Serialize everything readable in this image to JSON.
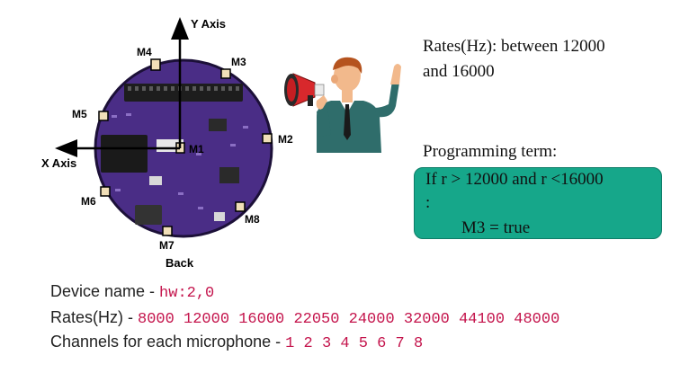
{
  "diagram": {
    "axes": {
      "y_label": "Y Axis",
      "x_label": "X Axis"
    },
    "mics": [
      "M1",
      "M2",
      "M3",
      "M4",
      "M5",
      "M6",
      "M7",
      "M8"
    ],
    "back_label": "Back"
  },
  "rates_note": {
    "line1": "Rates(Hz): between 12000",
    "line2": "and 16000"
  },
  "programming": {
    "title": "Programming term:",
    "line1": "If r > 12000 and r <16000",
    "line2": ":",
    "line3": "M3 = true"
  },
  "info": {
    "device_label": "Device name - ",
    "device_value": "hw:2,0",
    "rates_label": "Rates(Hz) - ",
    "rates_value": "8000 12000 16000 22050 24000 32000 44100 48000",
    "channels_label": "Channels for each microphone - ",
    "channels_value": "1 2 3 4 5 6 7 8"
  },
  "colors": {
    "board": "#4a2d86",
    "box": "#16a78a",
    "value_text": "#c4144c"
  }
}
